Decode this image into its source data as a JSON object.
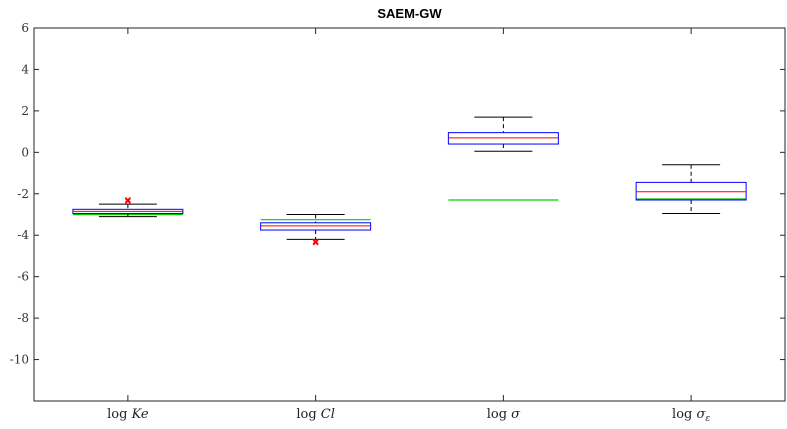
{
  "chart_data": {
    "type": "boxplot",
    "title": "SAEM-GW",
    "xlabel": "",
    "ylabel": "",
    "ylim": [
      -12,
      6
    ],
    "yticks": [
      6,
      4,
      2,
      0,
      -2,
      -4,
      -6,
      -8,
      -10
    ],
    "grid": false,
    "legend": "none",
    "categories": [
      {
        "fn": "log",
        "var": "Ke",
        "sub": ""
      },
      {
        "fn": "log",
        "var": "Cl",
        "sub": ""
      },
      {
        "fn": "log",
        "var": "σ",
        "sub": ""
      },
      {
        "fn": "log",
        "var": "σ",
        "sub": "ε"
      }
    ],
    "boxes": [
      {
        "whisker_low": -3.1,
        "q1": -2.95,
        "median": -2.85,
        "q3": -2.75,
        "whisker_high": -2.5,
        "outliers": [
          -2.35,
          -2.3
        ],
        "reference": -3.0
      },
      {
        "whisker_low": -4.2,
        "q1": -3.75,
        "median": -3.55,
        "q3": -3.4,
        "whisker_high": -3.0,
        "outliers": [
          -4.3,
          -4.35
        ],
        "reference": -3.25
      },
      {
        "whisker_low": 0.05,
        "q1": 0.4,
        "median": 0.7,
        "q3": 0.95,
        "whisker_high": 1.7,
        "outliers": [],
        "reference": -2.3
      },
      {
        "whisker_low": -2.95,
        "q1": -2.3,
        "median": -1.9,
        "q3": -1.45,
        "whisker_high": -0.6,
        "outliers": [],
        "reference": -2.25
      }
    ],
    "colors": {
      "box": "#0000ff",
      "median": "#ff0000",
      "outlier": "#ff0000",
      "reference": "#00cc00",
      "whisker": "#000000",
      "axis": "#262626"
    }
  }
}
